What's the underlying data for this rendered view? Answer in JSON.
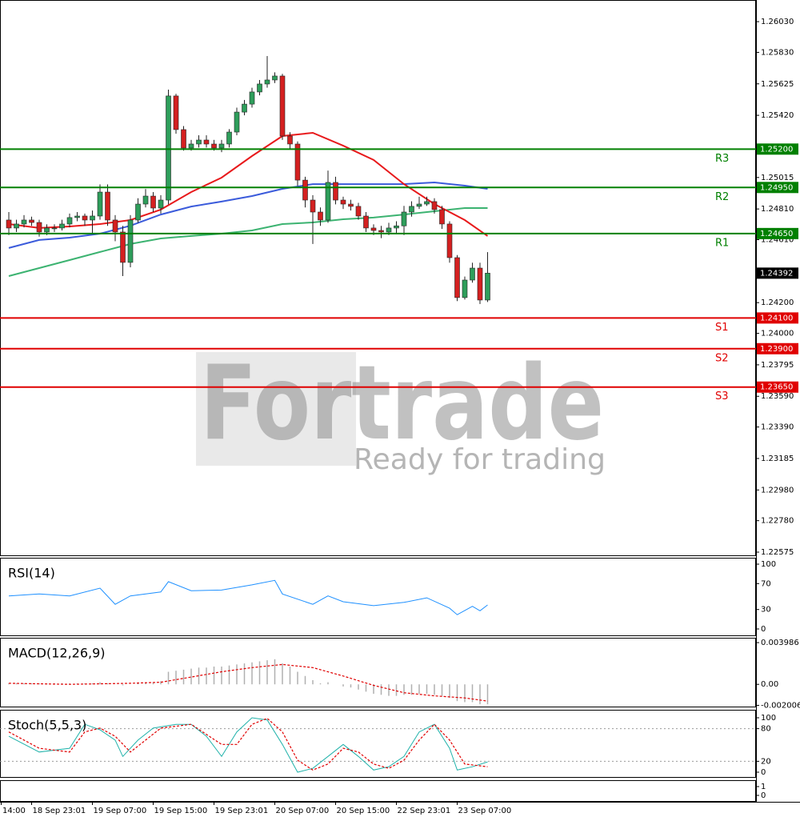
{
  "watermark": {
    "brand": "Fortrade",
    "tagline": "Ready for trading"
  },
  "chart_data": [
    {
      "type": "candlestick",
      "xlim": [
        -1.16,
        98.32
      ],
      "ylim": [
        1.22549,
        1.26171
      ],
      "up_color": "#2e9e5b",
      "down_color": "#d42020",
      "xticks": [
        {
          "value": -1,
          "label": "14:00"
        },
        {
          "value": 3,
          "label": "18 Sep 23:01"
        },
        {
          "value": 11,
          "label": "19 Sep 07:00"
        },
        {
          "value": 19,
          "label": "19 Sep 15:00"
        },
        {
          "value": 27,
          "label": "19 Sep 23:01"
        },
        {
          "value": 35,
          "label": "20 Sep 07:00"
        },
        {
          "value": 43,
          "label": "20 Sep 15:00"
        },
        {
          "value": 51,
          "label": "22 Sep 23:01"
        },
        {
          "value": 59,
          "label": "23 Sep 07:00"
        }
      ],
      "yticks": [
        {
          "value": 1.2603,
          "label": "1.26030"
        },
        {
          "value": 1.2583,
          "label": "1.25830"
        },
        {
          "value": 1.25625,
          "label": "1.25625"
        },
        {
          "value": 1.2542,
          "label": "1.25420"
        },
        {
          "value": 1.25015,
          "label": "1.25015"
        },
        {
          "value": 1.2481,
          "label": "1.24810"
        },
        {
          "value": 1.2461,
          "label": "1.24610"
        },
        {
          "value": 1.242,
          "label": "1.24200"
        },
        {
          "value": 1.24,
          "label": "1.24000"
        },
        {
          "value": 1.23795,
          "label": "1.23795"
        },
        {
          "value": 1.2359,
          "label": "1.23590"
        },
        {
          "value": 1.2339,
          "label": "1.23390"
        },
        {
          "value": 1.23185,
          "label": "1.23185"
        },
        {
          "value": 1.2298,
          "label": "1.22980"
        },
        {
          "value": 1.2278,
          "label": "1.22780"
        },
        {
          "value": 1.22575,
          "label": "1.22575"
        }
      ],
      "open": [
        1.24738,
        1.24686,
        1.24712,
        1.24738,
        1.24722,
        1.2466,
        1.24686,
        1.24686,
        1.24712,
        1.24754,
        1.24764,
        1.24738,
        1.24764,
        1.2492,
        1.24738,
        1.2466,
        1.24462,
        1.24738,
        1.24842,
        1.24894,
        1.24816,
        1.24868,
        1.25546,
        1.25327,
        1.25207,
        1.25233,
        1.25259,
        1.25233,
        1.25207,
        1.25233,
        1.25311,
        1.25441,
        1.25493,
        1.25572,
        1.25624,
        1.2565,
        1.25676,
        1.25285,
        1.25233,
        1.24998,
        1.24868,
        1.2479,
        1.24738,
        1.24983,
        1.24868,
        1.24842,
        1.24827,
        1.24764,
        1.24686,
        1.2467,
        1.2466,
        1.24686,
        1.247,
        1.2479,
        1.24827,
        1.24842,
        1.24858,
        1.24806,
        1.24712,
        1.24493,
        1.24233,
        1.24347,
        1.24425,
        1.24217
      ],
      "high": [
        1.2479,
        1.2474,
        1.2477,
        1.2476,
        1.2474,
        1.2471,
        1.2471,
        1.2474,
        1.2478,
        1.2479,
        1.2478,
        1.248,
        1.2497,
        1.2497,
        1.2477,
        1.247,
        1.2477,
        1.2488,
        1.2494,
        1.2492,
        1.249,
        1.25587,
        1.2556,
        1.2535,
        1.2526,
        1.2529,
        1.2529,
        1.2526,
        1.2526,
        1.2533,
        1.2547,
        1.2552,
        1.256,
        1.2565,
        1.25806,
        1.257,
        1.2569,
        1.2531,
        1.2525,
        1.2502,
        1.249,
        1.2482,
        1.2506,
        1.2502,
        1.2489,
        1.2487,
        1.2485,
        1.2479,
        1.2471,
        1.247,
        1.2472,
        1.2473,
        1.2483,
        1.2486,
        1.2489,
        1.2489,
        1.2488,
        1.2483,
        1.2473,
        1.2451,
        1.2437,
        1.2446,
        1.2446,
        1.24529
      ],
      "low": [
        1.2464,
        1.2466,
        1.2469,
        1.247,
        1.2463,
        1.2464,
        1.2466,
        1.2467,
        1.2469,
        1.2473,
        1.247,
        1.2465,
        1.2474,
        1.247,
        1.246,
        1.24373,
        1.2443,
        1.2472,
        1.2482,
        1.2479,
        1.2478,
        1.2484,
        1.253,
        1.2519,
        1.2519,
        1.2521,
        1.2521,
        1.2519,
        1.2518,
        1.2521,
        1.2529,
        1.2542,
        1.2547,
        1.2555,
        1.256,
        1.2563,
        1.2526,
        1.252,
        1.2496,
        1.2482,
        1.24582,
        1.247,
        1.2472,
        1.2484,
        1.2481,
        1.248,
        1.2474,
        1.2466,
        1.2464,
        1.2462,
        1.2464,
        1.2465,
        1.2464,
        1.2476,
        1.2481,
        1.2483,
        1.2478,
        1.2468,
        1.2446,
        1.2421,
        1.2422,
        1.2433,
        1.24191,
        1.24204
      ],
      "close": [
        1.24686,
        1.24712,
        1.24738,
        1.24722,
        1.2466,
        1.24686,
        1.24686,
        1.24712,
        1.24754,
        1.24764,
        1.24738,
        1.24764,
        1.2492,
        1.24738,
        1.2466,
        1.24462,
        1.24738,
        1.24842,
        1.24894,
        1.24816,
        1.24868,
        1.25546,
        1.25327,
        1.25207,
        1.25233,
        1.25259,
        1.25233,
        1.25207,
        1.25233,
        1.25311,
        1.25441,
        1.25493,
        1.25572,
        1.25624,
        1.2565,
        1.25676,
        1.25285,
        1.25233,
        1.24998,
        1.24868,
        1.2479,
        1.24738,
        1.24983,
        1.24868,
        1.24842,
        1.24827,
        1.24764,
        1.24686,
        1.2467,
        1.2466,
        1.24686,
        1.247,
        1.2479,
        1.24827,
        1.24842,
        1.24858,
        1.24806,
        1.24712,
        1.24493,
        1.24233,
        1.24347,
        1.24425,
        1.24217,
        1.24392
      ],
      "series": [
        {
          "color": "#3cb371",
          "x": [
            0,
            4,
            8,
            12,
            16,
            20,
            24,
            28,
            32,
            36,
            40,
            44,
            48,
            52,
            56,
            60,
            63
          ],
          "values": [
            1.24373,
            1.24425,
            1.24477,
            1.2453,
            1.24582,
            1.24618,
            1.24634,
            1.24649,
            1.2467,
            1.24712,
            1.24722,
            1.24743,
            1.24754,
            1.24774,
            1.24795,
            1.24816,
            1.24816
          ]
        },
        {
          "color": "#3b5bdb",
          "x": [
            0,
            4,
            8,
            12,
            16,
            20,
            24,
            28,
            32,
            36,
            40,
            44,
            48,
            52,
            56,
            60,
            63
          ],
          "values": [
            1.24556,
            1.24608,
            1.24623,
            1.24649,
            1.24701,
            1.24774,
            1.24826,
            1.24858,
            1.24894,
            1.24941,
            1.24972,
            1.24972,
            1.24972,
            1.24972,
            1.24983,
            1.24962,
            1.24941
          ]
        },
        {
          "color": "#e8191b",
          "x": [
            0,
            4,
            8,
            12,
            16,
            20,
            24,
            28,
            32,
            36,
            40,
            44,
            48,
            52,
            56,
            60,
            63
          ],
          "values": [
            1.24712,
            1.24686,
            1.24696,
            1.24712,
            1.24738,
            1.24806,
            1.2492,
            1.25014,
            1.25155,
            1.25285,
            1.25306,
            1.25222,
            1.25129,
            1.24972,
            1.24842,
            1.24738,
            1.24634
          ]
        }
      ],
      "levels": [
        {
          "name": "R3",
          "value": 1.252,
          "label": "1.25200",
          "color": "#008000"
        },
        {
          "name": "R2",
          "value": 1.2495,
          "label": "1.24950",
          "color": "#008000"
        },
        {
          "name": "R1",
          "value": 1.2465,
          "label": "1.24650",
          "color": "#008000"
        },
        {
          "name": "S1",
          "value": 1.241,
          "label": "1.24100",
          "color": "#e00000"
        },
        {
          "name": "S2",
          "value": 1.239,
          "label": "1.23900",
          "color": "#e00000"
        },
        {
          "name": "S3",
          "value": 1.2365,
          "label": "1.23650",
          "color": "#e00000"
        }
      ],
      "last_price": {
        "value": 1.24392,
        "label": "1.24392"
      }
    },
    {
      "type": "line",
      "title": "RSI(14)",
      "ylim": [
        -11.1,
        109.9
      ],
      "yticks": [
        0,
        30,
        70,
        100
      ],
      "series": [
        {
          "color": "#1e90ff",
          "x": [
            0,
            4,
            8,
            12,
            14,
            16,
            20,
            21,
            24,
            28,
            32,
            35,
            36,
            40,
            42,
            44,
            48,
            52,
            55,
            58,
            59,
            61,
            62,
            63
          ],
          "values": [
            51,
            54,
            51,
            63,
            38,
            51,
            57,
            73,
            59,
            60,
            68,
            75,
            54,
            38,
            51,
            42,
            36,
            41,
            48,
            32,
            22,
            35,
            28,
            37
          ]
        }
      ]
    },
    {
      "type": "macd",
      "title": "MACD(12,26,9)",
      "ylim": [
        -0.0022,
        0.00445
      ],
      "yticks": [
        0.003986,
        {
          "value": 0,
          "label": "0.00"
        },
        -0.002006
      ],
      "histogram": {
        "color": "#b0b0b0",
        "values": [
          0.0001,
          0.0001,
          0.0001,
          0.0001,
          0.0001,
          0.0001,
          0.0001,
          0.0001,
          0.0001,
          0.0001,
          0.0001,
          0.0001,
          0.0002,
          0.0001,
          0,
          -0.0001,
          0,
          0.0001,
          0.0002,
          0.0002,
          0.0003,
          0.0012,
          0.0013,
          0.0014,
          0.0015,
          0.0016,
          0.0016,
          0.0017,
          0.0017,
          0.0018,
          0.0019,
          0.002,
          0.0021,
          0.0022,
          0.0023,
          0.0024,
          0.002,
          0.0017,
          0.0012,
          0.0008,
          0.0004,
          0.0001,
          0.0002,
          0,
          -0.0002,
          -0.0003,
          -0.0005,
          -0.0007,
          -0.0009,
          -0.001,
          -0.0011,
          -0.0011,
          -0.001,
          -0.001,
          -0.0009,
          -0.0009,
          -0.001,
          -0.0011,
          -0.0013,
          -0.0016,
          -0.0017,
          -0.0017,
          -0.0019,
          -0.0019
        ]
      },
      "series": [
        {
          "color": "#e00000",
          "dash": true,
          "x": [
            0,
            8,
            16,
            20,
            24,
            28,
            32,
            36,
            40,
            44,
            48,
            52,
            56,
            60,
            63
          ],
          "values": [
            0.0001,
            0,
            0.0001,
            0.0002,
            0.0007,
            0.0012,
            0.0016,
            0.0019,
            0.0016,
            0.0008,
            -0.0001,
            -0.0008,
            -0.0011,
            -0.0013,
            -0.0016
          ]
        }
      ]
    },
    {
      "type": "line",
      "title": "Stoch(5,5,3)",
      "ylim": [
        -10.3,
        114.7
      ],
      "yticks": [
        0,
        20,
        80,
        100
      ],
      "grid_ticks": [
        20,
        80
      ],
      "series": [
        {
          "color": "#20b2aa",
          "x": [
            0,
            4,
            8,
            10,
            12,
            14,
            15,
            17,
            19,
            22,
            24,
            26,
            28,
            30,
            32,
            34,
            36,
            38,
            40,
            42,
            44,
            46,
            48,
            50,
            52,
            54,
            56,
            58,
            59,
            61,
            63
          ],
          "values": [
            66,
            37,
            44,
            88,
            78,
            59,
            29,
            59,
            81,
            88,
            88,
            66,
            29,
            74,
            100,
            96,
            51,
            0,
            7,
            29,
            51,
            29,
            4,
            10,
            29,
            74,
            88,
            44,
            4,
            10,
            19
          ]
        },
        {
          "color": "#e00000",
          "dash": true,
          "x": [
            0,
            4,
            8,
            10,
            12,
            14,
            16,
            18,
            20,
            24,
            28,
            30,
            32,
            34,
            36,
            38,
            40,
            42,
            44,
            46,
            48,
            50,
            52,
            54,
            56,
            58,
            60,
            63
          ],
          "values": [
            74,
            44,
            37,
            74,
            81,
            66,
            37,
            59,
            81,
            88,
            51,
            51,
            88,
            99,
            74,
            22,
            4,
            15,
            44,
            37,
            15,
            7,
            22,
            59,
            88,
            59,
            15,
            10
          ]
        }
      ]
    },
    {
      "type": "blank",
      "ylim": [
        -0.73,
        1.73
      ],
      "yticks": [
        0,
        1
      ]
    }
  ]
}
